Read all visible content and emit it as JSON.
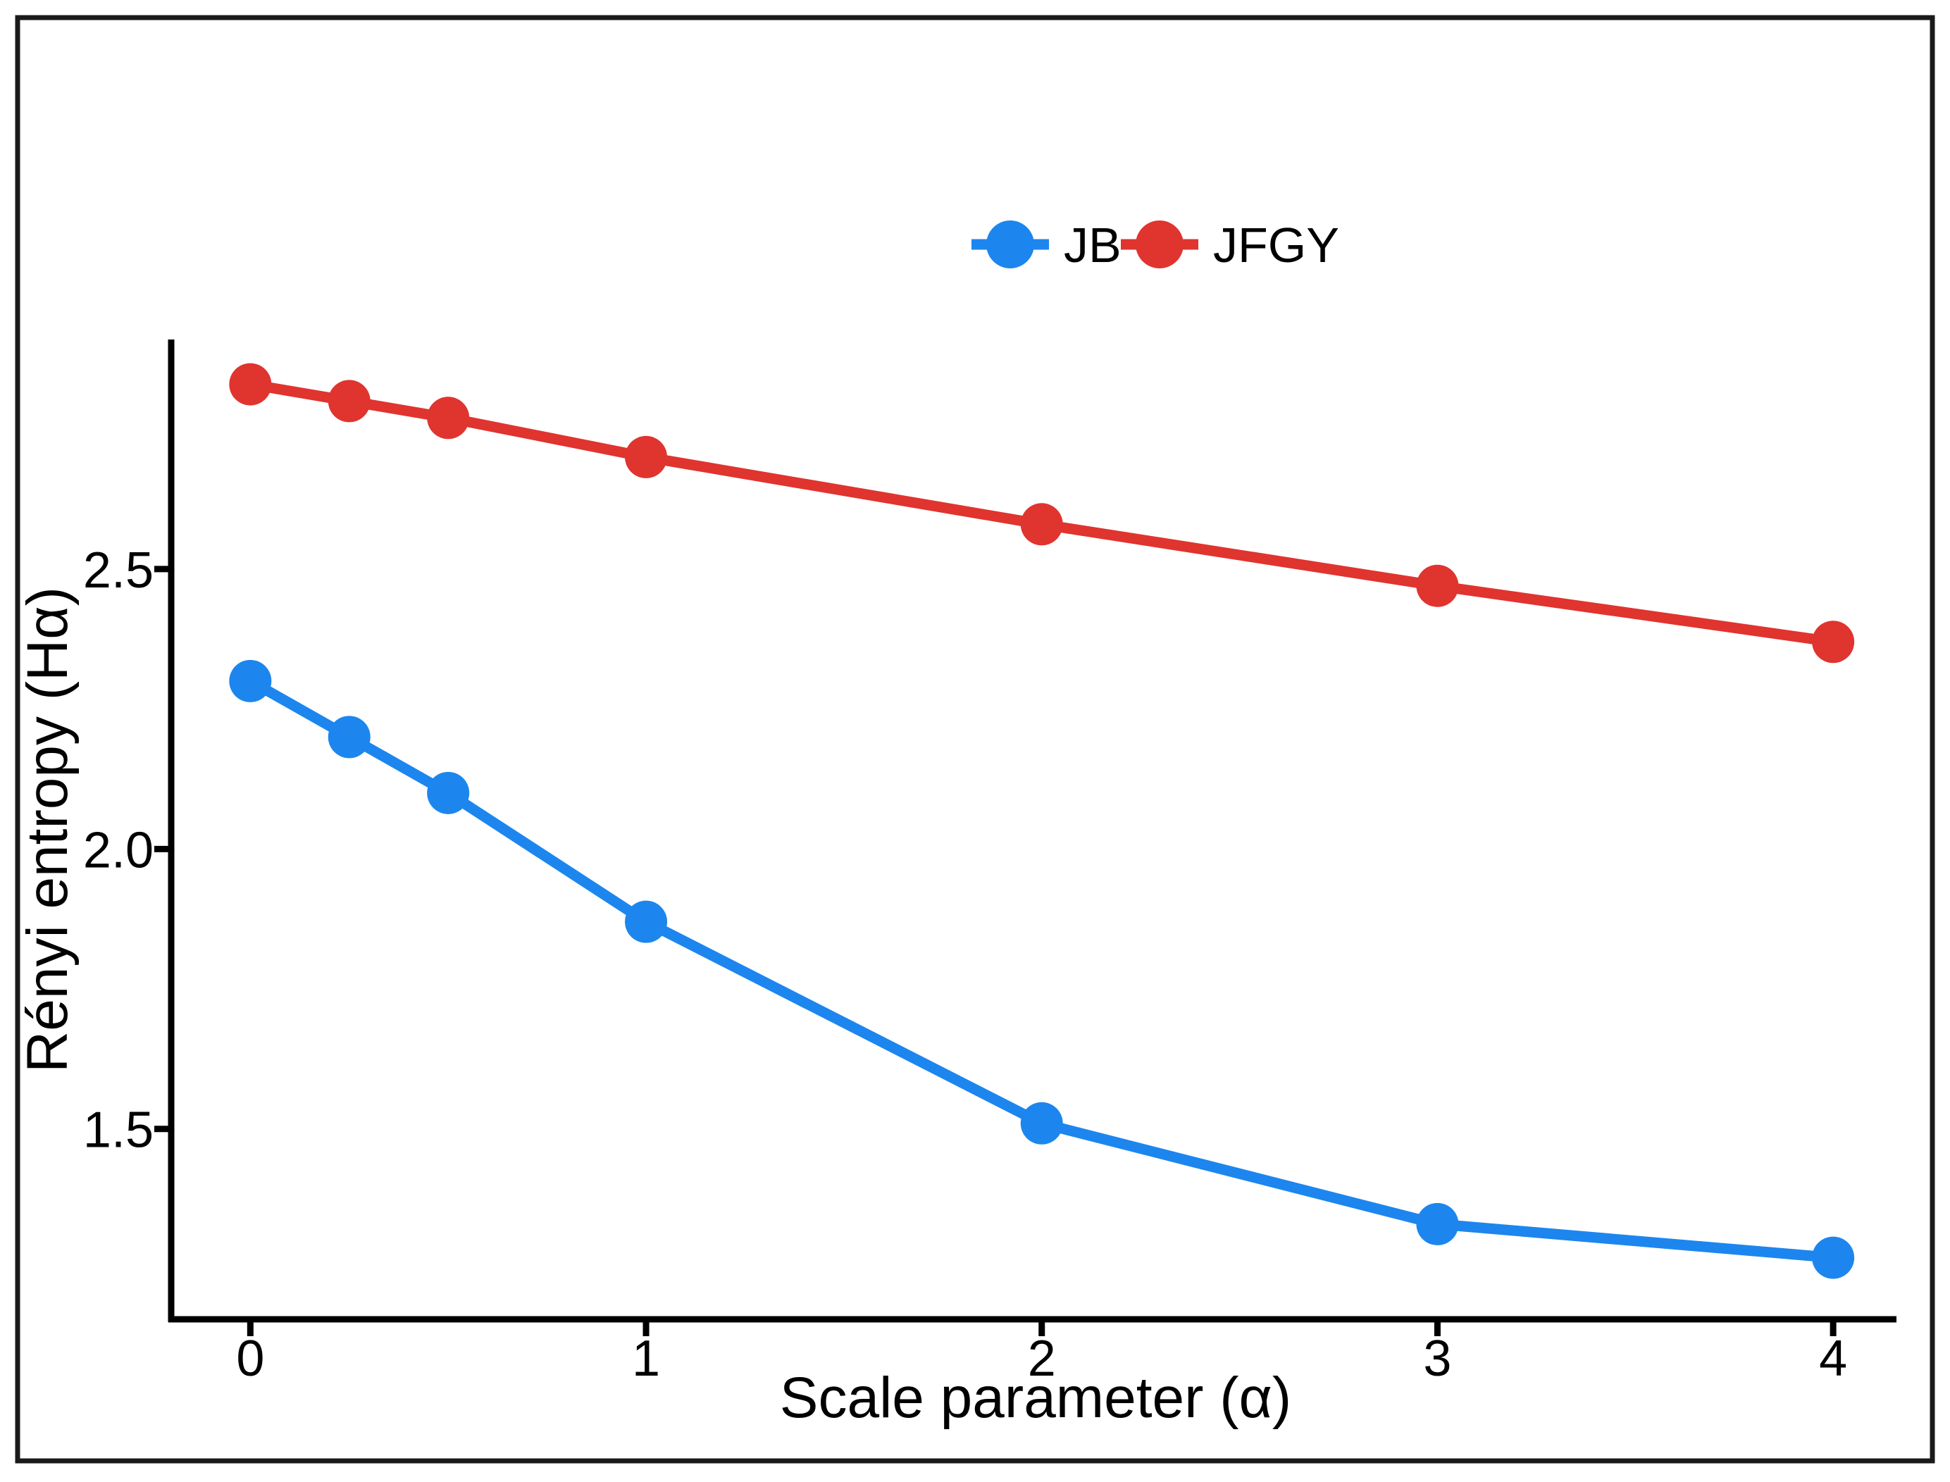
{
  "figure": {
    "background": "#ffffff",
    "border_color": "#1a1a1a",
    "axis_color": "#000000",
    "text_color": "#000000"
  },
  "legend": {
    "position": "top-center",
    "items": [
      {
        "label": "JB",
        "color": "#1C86EE"
      },
      {
        "label": "JFGY",
        "color": "#E0342F"
      }
    ]
  },
  "chart_data": {
    "type": "line",
    "title": "",
    "xlabel": "Scale parameter (α)",
    "ylabel": "Rényi entropy (Hα)",
    "x": [
      0,
      0.25,
      0.5,
      1,
      2,
      3,
      4
    ],
    "series": [
      {
        "name": "JB",
        "color": "#1C86EE",
        "values": [
          2.3,
          2.2,
          2.1,
          1.87,
          1.51,
          1.33,
          1.27
        ]
      },
      {
        "name": "JFGY",
        "color": "#E0342F",
        "values": [
          2.83,
          2.8,
          2.77,
          2.7,
          2.58,
          2.47,
          2.37
        ]
      }
    ],
    "x_ticks": [
      "0",
      "1",
      "2",
      "3",
      "4"
    ],
    "x_tick_values": [
      0,
      1,
      2,
      3,
      4
    ],
    "y_ticks": [
      "1.5",
      "2.0",
      "2.5"
    ],
    "y_tick_values": [
      1.5,
      2.0,
      2.5
    ],
    "xlim": [
      -0.2,
      4.16
    ],
    "ylim": [
      1.16,
      2.91
    ],
    "grid": false,
    "legend_position": "top-center",
    "marker": "point-on-line"
  }
}
